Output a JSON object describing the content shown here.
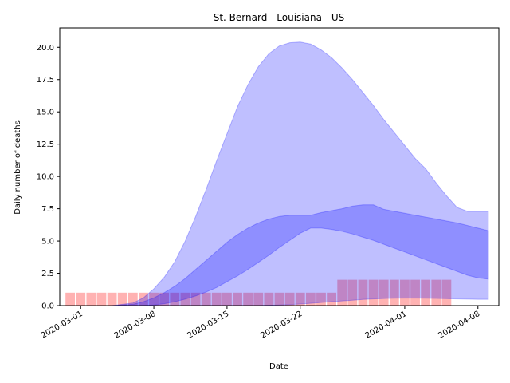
{
  "chart_data": {
    "type": "area",
    "title": "St. Bernard - Louisiana - US",
    "xlabel": "Date",
    "ylabel": "Daily number of deaths",
    "x_start": "2020-02-28",
    "x_end": "2020-04-10",
    "ylim": [
      0,
      21.5
    ],
    "x_ticks": [
      "2020-03-01",
      "2020-03-08",
      "2020-03-15",
      "2020-03-22",
      "2020-04-01",
      "2020-04-08"
    ],
    "y_ticks": [
      "0.0",
      "2.5",
      "5.0",
      "7.5",
      "10.0",
      "12.5",
      "15.0",
      "17.5",
      "20.0"
    ],
    "y_tick_values": [
      0,
      2.5,
      5,
      7.5,
      10,
      12.5,
      15,
      17.5,
      20
    ],
    "grid": false,
    "colors": {
      "outer_band": "#0000ff",
      "inner_band": "#0000ff",
      "bars": "#ff0000"
    },
    "bars": {
      "dates": [
        "2020-02-29",
        "2020-03-01",
        "2020-03-02",
        "2020-03-03",
        "2020-03-04",
        "2020-03-05",
        "2020-03-06",
        "2020-03-07",
        "2020-03-08",
        "2020-03-09",
        "2020-03-10",
        "2020-03-11",
        "2020-03-12",
        "2020-03-13",
        "2020-03-14",
        "2020-03-15",
        "2020-03-16",
        "2020-03-17",
        "2020-03-18",
        "2020-03-19",
        "2020-03-20",
        "2020-03-21",
        "2020-03-22",
        "2020-03-23",
        "2020-03-24",
        "2020-03-25",
        "2020-03-26",
        "2020-03-27",
        "2020-03-28",
        "2020-03-29",
        "2020-03-30",
        "2020-03-31",
        "2020-04-01",
        "2020-04-02",
        "2020-04-03",
        "2020-04-04",
        "2020-04-05"
      ],
      "values": [
        1,
        1,
        1,
        1,
        1,
        1,
        1,
        1,
        1,
        1,
        1,
        1,
        1,
        1,
        1,
        1,
        1,
        1,
        1,
        1,
        1,
        1,
        1,
        1,
        1,
        1,
        2,
        2,
        2,
        2,
        2,
        2,
        2,
        2,
        2,
        2,
        2
      ]
    },
    "outer_band": {
      "dates": [
        "2020-03-04",
        "2020-03-06",
        "2020-03-07",
        "2020-03-08",
        "2020-03-09",
        "2020-03-10",
        "2020-03-11",
        "2020-03-12",
        "2020-03-13",
        "2020-03-14",
        "2020-03-15",
        "2020-03-16",
        "2020-03-17",
        "2020-03-18",
        "2020-03-19",
        "2020-03-20",
        "2020-03-21",
        "2020-03-22",
        "2020-03-23",
        "2020-03-24",
        "2020-03-25",
        "2020-03-26",
        "2020-03-27",
        "2020-03-28",
        "2020-03-29",
        "2020-03-30",
        "2020-03-31",
        "2020-04-01",
        "2020-04-02",
        "2020-04-03",
        "2020-04-04",
        "2020-04-05",
        "2020-04-06",
        "2020-04-07",
        "2020-04-08",
        "2020-04-09"
      ],
      "upper": [
        0,
        0.2,
        0.6,
        1.3,
        2.2,
        3.4,
        5.0,
        6.9,
        9.0,
        11.2,
        13.3,
        15.4,
        17.1,
        18.5,
        19.5,
        20.1,
        20.35,
        20.4,
        20.25,
        19.8,
        19.2,
        18.4,
        17.5,
        16.5,
        15.5,
        14.4,
        13.4,
        12.4,
        11.4,
        10.6,
        9.5,
        8.5,
        7.6,
        7.3,
        7.3,
        7.3
      ],
      "lower": [
        0,
        0,
        0,
        0,
        0,
        0,
        0,
        0,
        0,
        0,
        0,
        0,
        0,
        0,
        0.02,
        0.05,
        0.08,
        0.12,
        0.18,
        0.24,
        0.3,
        0.36,
        0.42,
        0.48,
        0.52,
        0.55,
        0.57,
        0.58,
        0.58,
        0.57,
        0.56,
        0.54,
        0.52,
        0.5,
        0.49,
        0.49
      ]
    },
    "inner_band": {
      "dates": [
        "2020-03-04",
        "2020-03-06",
        "2020-03-07",
        "2020-03-08",
        "2020-03-09",
        "2020-03-10",
        "2020-03-11",
        "2020-03-12",
        "2020-03-13",
        "2020-03-14",
        "2020-03-15",
        "2020-03-16",
        "2020-03-17",
        "2020-03-18",
        "2020-03-19",
        "2020-03-20",
        "2020-03-21",
        "2020-03-22",
        "2020-03-23",
        "2020-03-24",
        "2020-03-25",
        "2020-03-26",
        "2020-03-27",
        "2020-03-28",
        "2020-03-29",
        "2020-03-30",
        "2020-03-31",
        "2020-04-01",
        "2020-04-02",
        "2020-04-03",
        "2020-04-04",
        "2020-04-05",
        "2020-04-06",
        "2020-04-07",
        "2020-04-08",
        "2020-04-09"
      ],
      "upper": [
        0,
        0.1,
        0.3,
        0.6,
        1.0,
        1.5,
        2.1,
        2.8,
        3.5,
        4.2,
        4.9,
        5.5,
        6.0,
        6.4,
        6.7,
        6.9,
        7.0,
        7.0,
        7.0,
        7.2,
        7.35,
        7.5,
        7.7,
        7.8,
        7.8,
        7.45,
        7.3,
        7.15,
        7.0,
        6.85,
        6.7,
        6.55,
        6.4,
        6.2,
        6.0,
        5.8
      ],
      "lower": [
        0,
        0,
        0,
        0.05,
        0.15,
        0.3,
        0.5,
        0.75,
        1.05,
        1.4,
        1.85,
        2.3,
        2.8,
        3.35,
        3.9,
        4.5,
        5.05,
        5.6,
        6.0,
        6.0,
        5.9,
        5.75,
        5.55,
        5.3,
        5.05,
        4.75,
        4.45,
        4.15,
        3.85,
        3.55,
        3.25,
        2.95,
        2.65,
        2.35,
        2.15,
        2.05
      ]
    }
  }
}
